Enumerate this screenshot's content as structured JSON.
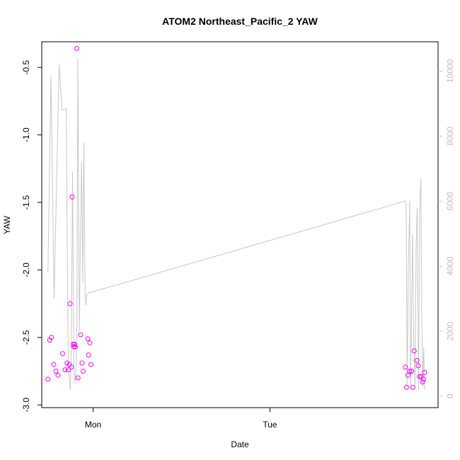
{
  "chart_data": {
    "type": "scatter",
    "title": "ATOM2 Northeast_Pacific_2 YAW",
    "xlabel": "Date",
    "ylabel": "YAW",
    "x_ticks": [
      "Mon",
      "Tue"
    ],
    "y_ticks": [
      "-0.5",
      "-1.0",
      "-1.5",
      "-2.0",
      "-2.5",
      "-3.0"
    ],
    "y_ticks_right": [
      "0",
      "2000",
      "4000",
      "6000",
      "8000",
      "10000"
    ],
    "ylim": [
      -3.02,
      -0.31
    ],
    "ylim_right": [
      -350,
      10900
    ],
    "xlim_days": [
      -0.29,
      1.95
    ],
    "point_color": "#ff00ff",
    "line_color": "#c8c8c8",
    "grid": false,
    "legend": "none",
    "series": [
      {
        "type": "points",
        "x_days": [
          -0.255,
          -0.245,
          -0.235,
          -0.222,
          -0.21,
          -0.198,
          -0.172,
          -0.158,
          -0.147,
          -0.14,
          -0.134,
          -0.13,
          -0.122,
          -0.118,
          -0.112,
          -0.108,
          -0.104,
          -0.1,
          -0.092,
          -0.085,
          -0.07,
          -0.062,
          -0.056,
          -0.03,
          -0.025,
          -0.018,
          -0.012,
          1.765,
          1.772,
          1.78,
          1.79,
          1.8,
          1.808,
          1.815,
          1.83,
          1.838,
          1.846,
          1.854,
          1.862,
          1.868,
          1.874
        ],
        "y": [
          -2.81,
          -2.52,
          -2.5,
          -2.7,
          -2.75,
          -2.78,
          -2.62,
          -2.74,
          -2.69,
          -2.74,
          -2.7,
          -2.25,
          -2.72,
          -1.46,
          -2.55,
          -2.57,
          -2.55,
          -2.57,
          -0.36,
          -2.8,
          -2.48,
          -2.69,
          -2.75,
          -2.51,
          -2.63,
          -2.54,
          -2.7,
          -2.72,
          -2.87,
          -2.78,
          -2.75,
          -2.75,
          -2.87,
          -2.6,
          -2.67,
          -2.71,
          -2.79,
          -2.79,
          -2.83,
          -2.81,
          -2.76
        ]
      },
      {
        "type": "line",
        "axis": "right",
        "x_days": [
          -0.255,
          -0.238,
          -0.22,
          -0.192,
          -0.175,
          -0.165,
          -0.152,
          -0.14,
          -0.128,
          -0.122,
          -0.116,
          -0.108,
          -0.102,
          -0.097,
          -0.092,
          -0.086,
          -0.078,
          -0.072,
          -0.065,
          -0.058,
          -0.052,
          -0.045,
          -0.04,
          -0.035,
          -0.028,
          -0.022,
          -0.016,
          -0.008,
          1.765,
          1.77,
          1.775,
          1.782,
          1.79,
          1.795,
          1.8,
          1.806,
          1.812,
          1.82,
          1.826,
          1.832,
          1.84,
          1.846,
          1.853,
          1.858,
          1.864,
          1.869,
          1.874
        ],
        "y": [
          3800,
          9850,
          3000,
          10200,
          8800,
          8800,
          8850,
          800,
          200,
          2000,
          6900,
          800,
          400,
          800,
          1500,
          10400,
          2000,
          4600,
          7200,
          3500,
          7800,
          3100,
          2800,
          3150,
          3150,
          3200,
          3200,
          3200,
          6000,
          5900,
          300,
          4000,
          6000,
          200,
          2500,
          5000,
          1800,
          300,
          4600,
          5800,
          200,
          5700,
          6700,
          2500,
          300,
          1500,
          200
        ]
      }
    ]
  }
}
